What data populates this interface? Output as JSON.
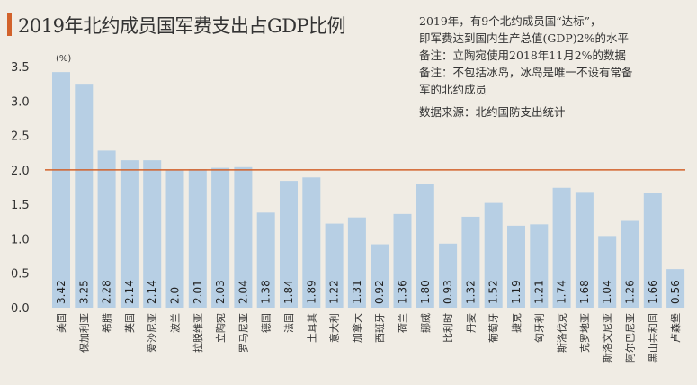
{
  "header": {
    "title": "2019年北约成员国军费支出占GDP比例",
    "accent_color": "#d2622b"
  },
  "notes": {
    "line1": "2019年，有9个北约成员国“达标”，",
    "line2": "即军费达到国内生产总值(GDP)2%的水平",
    "line3": "备注：立陶宛使用2018年11月2%的数据",
    "line4": "备注：不包括冰岛，冰岛是唯一不设有常备",
    "line5": "军的北约成员",
    "source": "数据来源：北约国防支出统计"
  },
  "chart_data": {
    "type": "bar",
    "title": "2019年北约成员国军费支出占GDP比例",
    "ylabel": "(%)",
    "ylim": [
      0,
      3.5
    ],
    "yticks": [
      "0.0",
      "0.5",
      "1.0",
      "1.5",
      "2.0",
      "2.5",
      "3.0",
      "3.5"
    ],
    "reference_line": 2.0,
    "bar_color": "#b7cfe4",
    "line_color": "#d2622b",
    "grid": false,
    "categories": [
      "美国",
      "保加利亚",
      "希腊",
      "英国",
      "爱沙尼亚",
      "波兰",
      "拉脱维亚",
      "立陶宛",
      "罗马尼亚",
      "德国",
      "法国",
      "土耳其",
      "意大利",
      "加拿大",
      "西班牙",
      "荷兰",
      "挪威",
      "比利时",
      "丹麦",
      "葡萄牙",
      "捷克",
      "匈牙利",
      "斯洛伐克",
      "克罗地亚",
      "斯洛文尼亚",
      "阿尔巴尼亚",
      "黑山共和国",
      "卢森堡"
    ],
    "values": [
      3.42,
      3.25,
      2.28,
      2.14,
      2.14,
      2.0,
      2.01,
      2.03,
      2.04,
      1.38,
      1.84,
      1.89,
      1.22,
      1.31,
      0.92,
      1.36,
      1.8,
      0.93,
      1.32,
      1.52,
      1.19,
      1.21,
      1.74,
      1.68,
      1.04,
      1.26,
      1.66,
      0.56
    ],
    "value_labels": [
      "3.42",
      "3.25",
      "2.28",
      "2.14",
      "2.14",
      "2.0",
      "2.01",
      "2.03",
      "2.04",
      "1.38",
      "1.84",
      "1.89",
      "1.22",
      "1.31",
      "0.92",
      "1.36",
      "1.80",
      "0.93",
      "1.32",
      "1.52",
      "1.19",
      "1.21",
      "1.74",
      "1.68",
      "1.04",
      "1.26",
      "1.66",
      "0.56"
    ]
  }
}
